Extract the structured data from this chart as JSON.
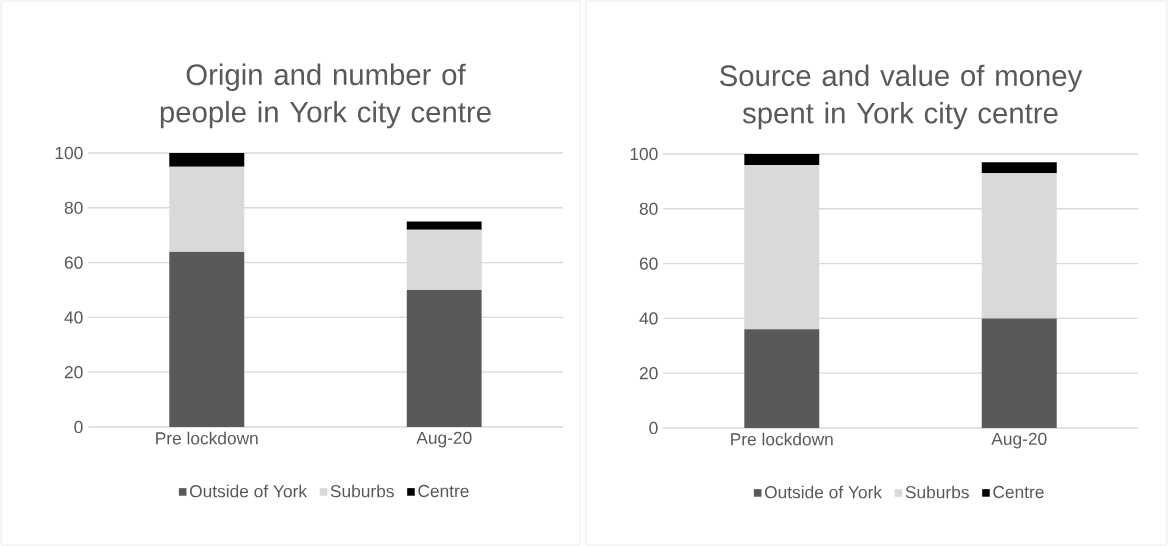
{
  "chart_data": [
    {
      "type": "bar",
      "stacked": true,
      "title": "Origin and number of people in York city centre",
      "categories": [
        "Pre lockdown",
        "Aug-20"
      ],
      "series": [
        {
          "name": "Outside of York",
          "color": "#595959",
          "values": [
            64,
            50
          ]
        },
        {
          "name": "Suburbs",
          "color": "#d9d9d9",
          "values": [
            31,
            22
          ]
        },
        {
          "name": "Centre",
          "color": "#000000",
          "values": [
            5,
            3
          ]
        }
      ],
      "ylim": [
        0,
        100
      ],
      "yticks": [
        0,
        20,
        40,
        60,
        80,
        100
      ],
      "grid": "y",
      "legend": "bottom"
    },
    {
      "type": "bar",
      "stacked": true,
      "title": "Source and value of money spent in York city centre",
      "categories": [
        "Pre lockdown",
        "Aug-20"
      ],
      "series": [
        {
          "name": "Outside of York",
          "color": "#595959",
          "values": [
            36,
            40
          ]
        },
        {
          "name": "Suburbs",
          "color": "#d9d9d9",
          "values": [
            60,
            53
          ]
        },
        {
          "name": "Centre",
          "color": "#000000",
          "values": [
            4,
            4
          ]
        }
      ],
      "ylim": [
        0,
        100
      ],
      "yticks": [
        0,
        20,
        40,
        60,
        80,
        100
      ],
      "grid": "y",
      "legend": "bottom"
    }
  ]
}
